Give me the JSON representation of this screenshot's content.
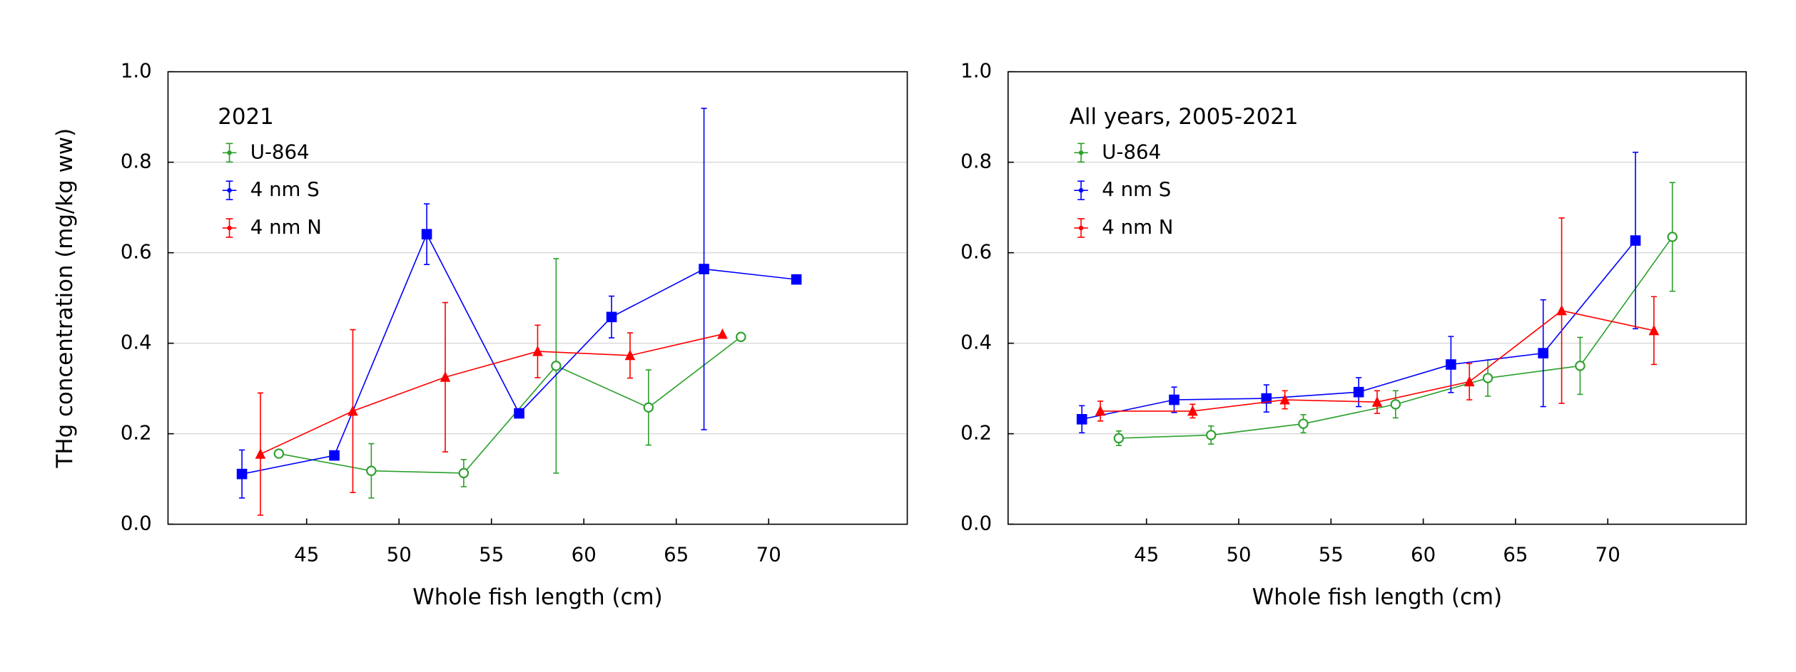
{
  "chart_data": [
    {
      "type": "line",
      "title": "2021",
      "x_label": "Whole fish length (cm)",
      "y_label": "THg concentration (mg/kg ww)",
      "xlim": [
        37.5,
        77.5
      ],
      "xticks": [
        45,
        50,
        55,
        60,
        65,
        70
      ],
      "ylim": [
        0,
        1
      ],
      "yticks": [
        {
          "value": 0,
          "label": "0.0"
        },
        {
          "value": 0.2,
          "label": "0.2"
        },
        {
          "value": 0.4,
          "label": "0.4"
        },
        {
          "value": 0.6,
          "label": "0.6"
        },
        {
          "value": 0.8,
          "label": "0.8"
        },
        {
          "value": 1,
          "label": "1.0"
        }
      ],
      "grid": true,
      "series": [
        {
          "name": "U-864",
          "color": "#2ca02c",
          "marker": "circle-open",
          "x": [
            43.5,
            48.5,
            53.5,
            58.5,
            63.5,
            68.5
          ],
          "values": [
            0.156,
            0.118,
            0.113,
            0.35,
            0.258,
            0.414
          ],
          "errors": [
            null,
            0.06,
            0.03,
            0.237,
            0.083,
            null
          ]
        },
        {
          "name": "4 nm S",
          "color": "#0000ff",
          "marker": "square",
          "x": [
            41.5,
            46.5,
            51.5,
            56.5,
            61.5,
            66.5,
            71.5
          ],
          "values": [
            0.111,
            0.152,
            0.641,
            0.245,
            0.458,
            0.564,
            0.541
          ],
          "errors": [
            0.053,
            null,
            0.067,
            null,
            0.046,
            0.355,
            null
          ]
        },
        {
          "name": "4 nm N",
          "color": "#ff0000",
          "marker": "triangle",
          "x": [
            42.5,
            47.5,
            52.5,
            57.5,
            62.5,
            67.5
          ],
          "values": [
            0.155,
            0.25,
            0.325,
            0.382,
            0.373,
            0.42
          ],
          "errors": [
            0.135,
            0.18,
            0.165,
            0.058,
            0.05,
            null
          ]
        }
      ]
    },
    {
      "type": "line",
      "title": "All years, 2005-2021",
      "x_label": "Whole fish length (cm)",
      "xlim": [
        37.5,
        77.5
      ],
      "xticks": [
        45,
        50,
        55,
        60,
        65,
        70
      ],
      "ylim": [
        0,
        1
      ],
      "yticks": [
        {
          "value": 0,
          "label": "0.0"
        },
        {
          "value": 0.2,
          "label": "0.2"
        },
        {
          "value": 0.4,
          "label": "0.4"
        },
        {
          "value": 0.6,
          "label": "0.6"
        },
        {
          "value": 0.8,
          "label": "0.8"
        },
        {
          "value": 1,
          "label": "1.0"
        }
      ],
      "grid": true,
      "series": [
        {
          "name": "U-864",
          "color": "#2ca02c",
          "marker": "circle-open",
          "x": [
            43.5,
            48.5,
            53.5,
            58.5,
            63.5,
            68.5,
            73.5
          ],
          "values": [
            0.19,
            0.197,
            0.222,
            0.265,
            0.323,
            0.35,
            0.635
          ],
          "errors": [
            0.016,
            0.02,
            0.02,
            0.03,
            0.04,
            0.063,
            0.12
          ]
        },
        {
          "name": "4 nm S",
          "color": "#0000ff",
          "marker": "square",
          "x": [
            41.5,
            46.5,
            51.5,
            56.5,
            61.5,
            66.5,
            71.5
          ],
          "values": [
            0.232,
            0.275,
            0.278,
            0.292,
            0.353,
            0.378,
            0.627
          ],
          "errors": [
            0.03,
            0.028,
            0.03,
            0.032,
            0.062,
            0.118,
            0.195
          ]
        },
        {
          "name": "4 nm N",
          "color": "#ff0000",
          "marker": "triangle",
          "x": [
            42.5,
            47.5,
            52.5,
            57.5,
            62.5,
            67.5,
            72.5
          ],
          "values": [
            0.25,
            0.25,
            0.275,
            0.27,
            0.315,
            0.472,
            0.428
          ],
          "errors": [
            0.022,
            0.015,
            0.02,
            0.025,
            0.04,
            0.205,
            0.075
          ]
        }
      ]
    }
  ]
}
